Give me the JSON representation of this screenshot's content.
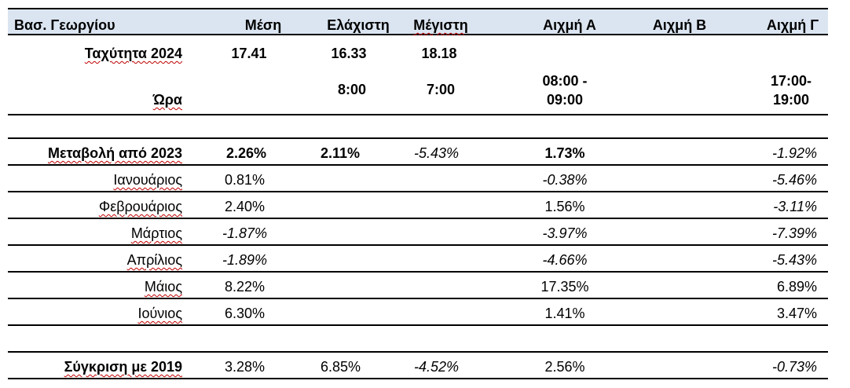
{
  "header": {
    "label": "Βασ. Γεωργίου",
    "columns": [
      "Μέση",
      "Ελάχιστη",
      "Μέγιστη",
      "Αιχμή Α",
      "Αιχμή Β",
      "Αιχμή Γ"
    ]
  },
  "rows": {
    "speed": {
      "label": "Ταχύτητα 2024",
      "mean": "17.41",
      "min": "16.33",
      "max": "18.18"
    },
    "time": {
      "label": "Ώρα",
      "min": "8:00",
      "max": "7:00",
      "peak_a_1": "08:00 -",
      "peak_a_2": "09:00",
      "peak_g_1": "17:00-",
      "peak_g_2": "19:00"
    },
    "change": {
      "label": "Μεταβολή από 2023",
      "mean": "2.26%",
      "min": "2.11%",
      "max": "-5.43%",
      "peak_a": "1.73%",
      "peak_g": "-1.92%"
    },
    "months": [
      {
        "label": "Ιανουάριος",
        "mean": "0.81%",
        "peak_a": "-0.38%",
        "peak_g": "-5.46%"
      },
      {
        "label": "Φεβρουάριος",
        "mean": "2.40%",
        "peak_a": "1.56%",
        "peak_g": "-3.11%"
      },
      {
        "label": "Μάρτιος",
        "mean": "-1.87%",
        "peak_a": "-3.97%",
        "peak_g": "-7.39%"
      },
      {
        "label": "Απρίλιος",
        "mean": "-1.89%",
        "peak_a": "-4.66%",
        "peak_g": "-5.43%"
      },
      {
        "label": "Μάιος",
        "mean": "8.22%",
        "peak_a": "17.35%",
        "peak_g": "6.89%"
      },
      {
        "label": "Ιούνιος",
        "mean": "6.30%",
        "peak_a": "1.41%",
        "peak_g": "3.47%"
      }
    ],
    "compare": {
      "label": "Σύγκριση με 2019",
      "mean": "3.28%",
      "min": "6.85%",
      "max": "-4.52%",
      "peak_a": "2.56%",
      "peak_g": "-0.73%"
    }
  },
  "colors": {
    "header_bg": "#dbe5f1",
    "spell_underline": "#c00000"
  }
}
